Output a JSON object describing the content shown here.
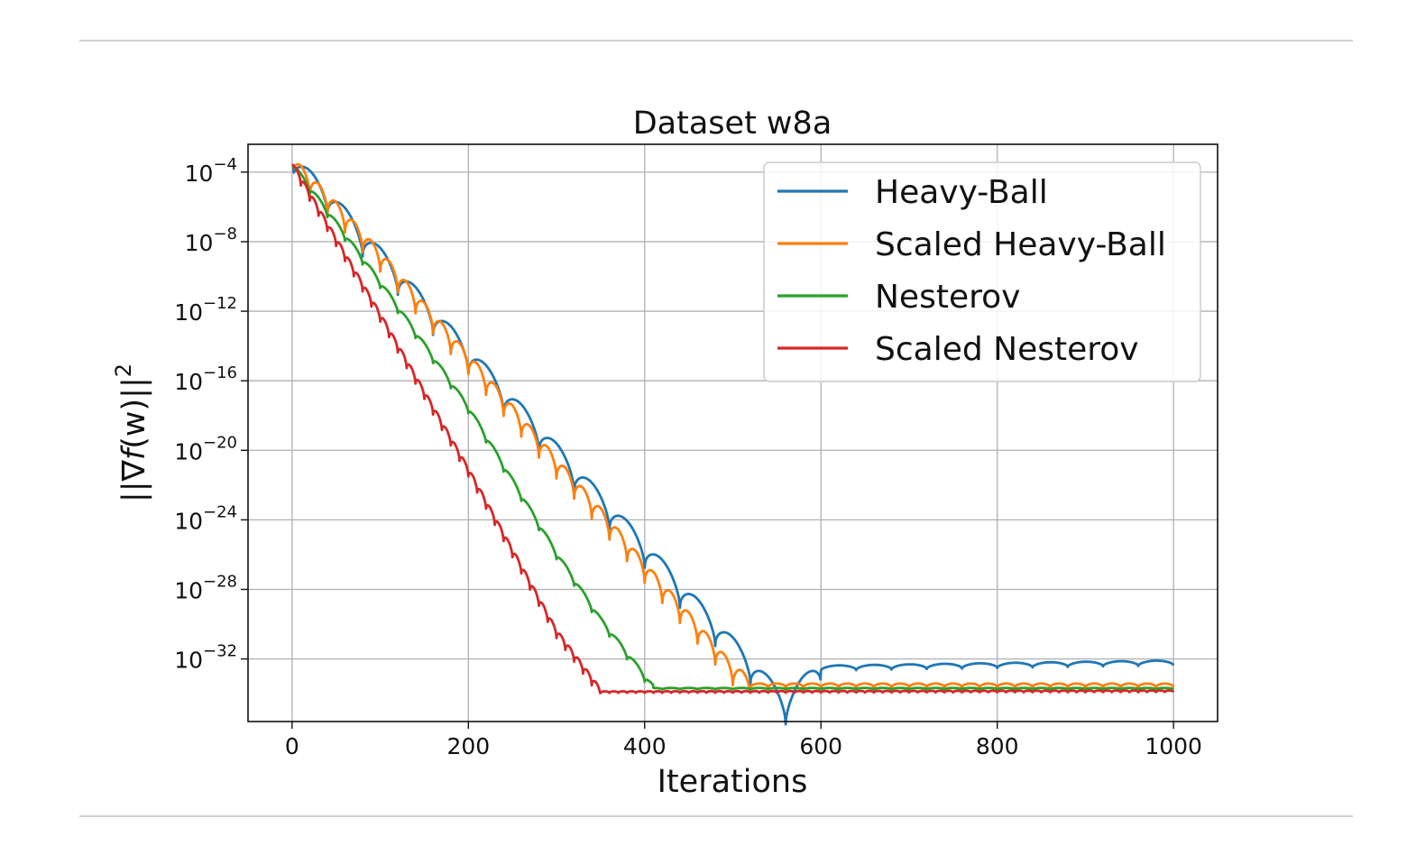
{
  "chart_data": {
    "type": "line",
    "title": "Dataset w8a",
    "xlabel": "Iterations",
    "ylabel": "||∇f(w)||²",
    "ylabel_parts": {
      "open": "||∇",
      "func": "f",
      "arg": "(w)",
      "close": "||",
      "power": "2"
    },
    "xlim": [
      -50,
      1050
    ],
    "ylim_log10": [
      -35.6,
      -2.4
    ],
    "y_scale": "log",
    "grid": true,
    "legend_position": "top-right",
    "x_ticks": [
      0,
      200,
      400,
      600,
      800,
      1000
    ],
    "y_ticks": [
      {
        "base": "10",
        "exp": "−4",
        "log10": -4
      },
      {
        "base": "10",
        "exp": "−8",
        "log10": -8
      },
      {
        "base": "10",
        "exp": "−12",
        "log10": -12
      },
      {
        "base": "10",
        "exp": "−16",
        "log10": -16
      },
      {
        "base": "10",
        "exp": "−20",
        "log10": -20
      },
      {
        "base": "10",
        "exp": "−24",
        "log10": -24
      },
      {
        "base": "10",
        "exp": "−28",
        "log10": -28
      },
      {
        "base": "10",
        "exp": "−32",
        "log10": -32
      }
    ],
    "series": [
      {
        "name": "Heavy-Ball",
        "color": "#1f77b4",
        "x": [
          0,
          40,
          80,
          120,
          160,
          200,
          240,
          280,
          320,
          360,
          400,
          440,
          480,
          520,
          560,
          600,
          1000
        ],
        "log10": [
          -3.6,
          -5.5,
          -7.9,
          -10.1,
          -12.4,
          -14.6,
          -16.9,
          -19.1,
          -21.4,
          -23.6,
          -25.8,
          -28.1,
          -30.3,
          -32.5,
          -34.8,
          -32.5,
          -32.2
        ],
        "period": 40,
        "ripple": 1.6
      },
      {
        "name": "Scaled Heavy-Ball",
        "color": "#ff7f0e",
        "x": [
          0,
          50,
          100,
          150,
          200,
          250,
          300,
          350,
          400,
          450,
          500,
          520,
          1000
        ],
        "log10": [
          -3.6,
          -6.2,
          -9.0,
          -12.0,
          -14.9,
          -17.9,
          -20.9,
          -23.8,
          -26.9,
          -29.8,
          -32.8,
          -33.5,
          -33.5
        ],
        "period": 20,
        "ripple": 1.2
      },
      {
        "name": "Nesterov",
        "color": "#2ca02c",
        "x": [
          0,
          100,
          200,
          300,
          350,
          410,
          1000
        ],
        "log10": [
          -3.6,
          -10.4,
          -17.6,
          -26.0,
          -29.8,
          -33.7,
          -33.7
        ],
        "period": 20,
        "ripple": 0.45
      },
      {
        "name": "Scaled Nesterov",
        "color": "#d62728",
        "x": [
          0,
          100,
          200,
          300,
          350,
          1000
        ],
        "log10": [
          -3.6,
          -12.3,
          -21.2,
          -30.5,
          -33.9,
          -33.85
        ],
        "period": 10,
        "ripple": 0.5
      }
    ]
  }
}
